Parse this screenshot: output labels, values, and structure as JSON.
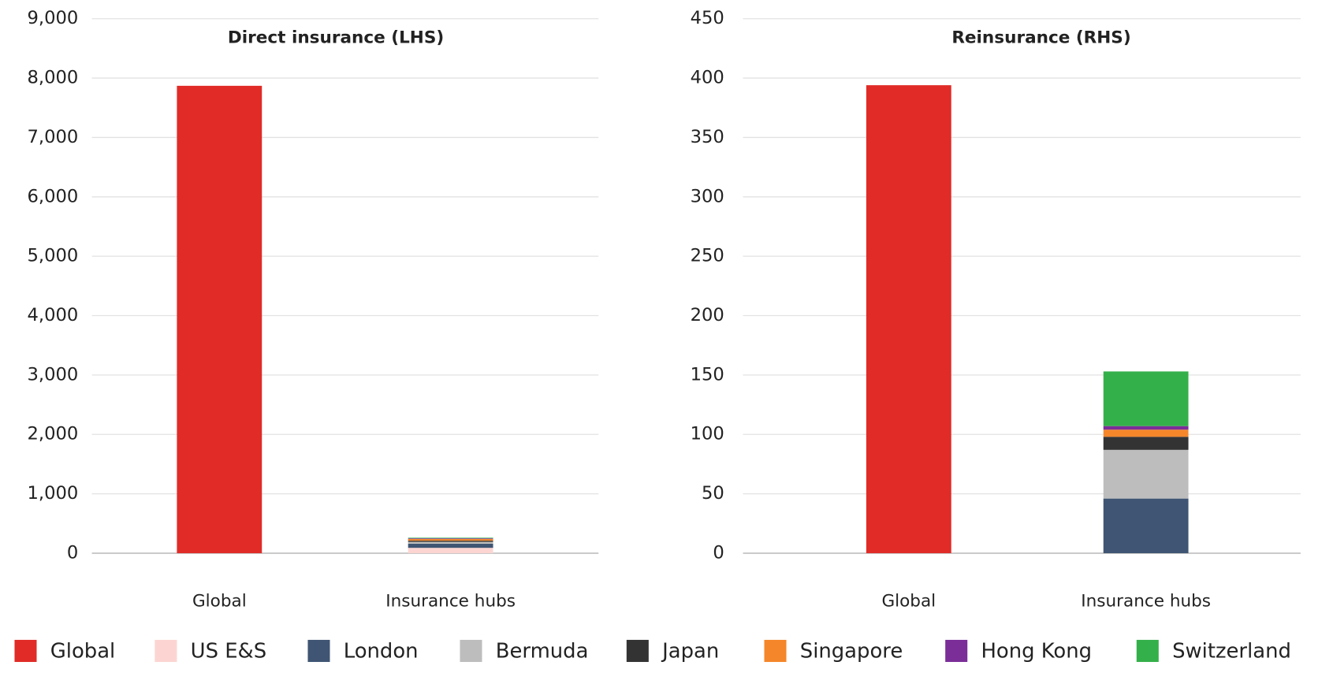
{
  "chart_data": [
    {
      "type": "bar",
      "stacked": true,
      "title": "Direct insurance (LHS)",
      "categories": [
        "Global",
        "Insurance hubs"
      ],
      "ylim": [
        0,
        9000
      ],
      "yticks": [
        0,
        {
          "value": 1000,
          "label": "1,000"
        },
        {
          "value": 2000,
          "label": "2,000"
        },
        {
          "value": 3000,
          "label": "3,000"
        },
        {
          "value": 4000,
          "label": "4,000"
        },
        {
          "value": 5000,
          "label": "5,000"
        },
        {
          "value": 6000,
          "label": "6,000"
        },
        {
          "value": 7000,
          "label": "7,000"
        },
        {
          "value": 8000,
          "label": "8,000"
        },
        {
          "value": 9000,
          "label": "9,000"
        }
      ],
      "grid": true,
      "series": [
        {
          "name": "Global",
          "color": "#e02b27",
          "values": [
            7870,
            null
          ]
        },
        {
          "name": "US E&S",
          "color": "#fcd5d2",
          "values": [
            null,
            90
          ]
        },
        {
          "name": "London",
          "color": "#3f5573",
          "values": [
            null,
            70
          ]
        },
        {
          "name": "Bermuda",
          "color": "#bdbdbd",
          "values": [
            null,
            30
          ]
        },
        {
          "name": "Japan",
          "color": "#333333",
          "values": [
            null,
            20
          ]
        },
        {
          "name": "Singapore",
          "color": "#f5862a",
          "values": [
            null,
            30
          ]
        },
        {
          "name": "Hong Kong",
          "color": "#7b2d98",
          "values": [
            null,
            10
          ]
        },
        {
          "name": "Switzerland",
          "color": "#34b04a",
          "values": [
            null,
            10
          ]
        }
      ]
    },
    {
      "type": "bar",
      "stacked": true,
      "title": "Reinsurance (RHS)",
      "categories": [
        "Global",
        "Insurance hubs"
      ],
      "ylim": [
        0,
        450
      ],
      "yticks": [
        0,
        50,
        100,
        150,
        200,
        250,
        300,
        350,
        400,
        450
      ],
      "grid": true,
      "series": [
        {
          "name": "Global",
          "color": "#e02b27",
          "values": [
            394,
            null
          ]
        },
        {
          "name": "US E&S",
          "color": "#fcd5d2",
          "values": [
            null,
            0
          ]
        },
        {
          "name": "London",
          "color": "#3f5573",
          "values": [
            null,
            46
          ]
        },
        {
          "name": "Bermuda",
          "color": "#bdbdbd",
          "values": [
            null,
            41
          ]
        },
        {
          "name": "Japan",
          "color": "#333333",
          "values": [
            null,
            11
          ]
        },
        {
          "name": "Singapore",
          "color": "#f5862a",
          "values": [
            null,
            6
          ]
        },
        {
          "name": "Hong Kong",
          "color": "#7b2d98",
          "values": [
            null,
            3
          ]
        },
        {
          "name": "Switzerland",
          "color": "#34b04a",
          "values": [
            null,
            46
          ]
        }
      ]
    }
  ]
}
